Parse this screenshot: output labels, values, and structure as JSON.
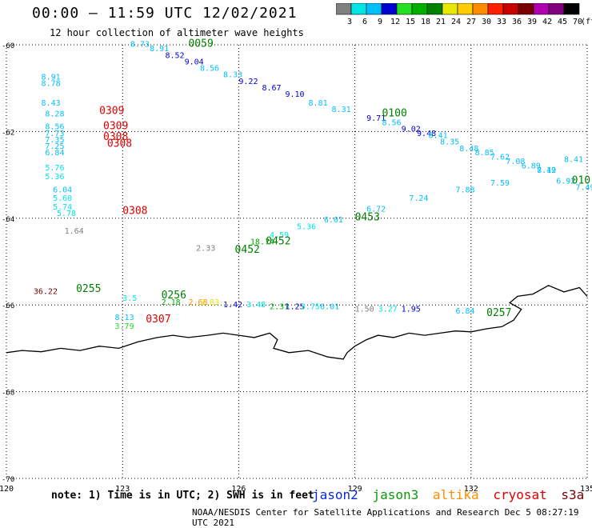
{
  "header": {
    "title": "00:00 – 11:59 UTC 12/02/2021",
    "subtitle": "12 hour collection of altimeter wave heights"
  },
  "footer": {
    "note": "note: 1) Time is in UTC; 2) SWH is in feet",
    "credit": "NOAA/NESDIS Center for Satellite Applications and Research   Dec  5 08:27:19 UTC 2021"
  },
  "satellites": [
    {
      "name": "jason2",
      "color": "#0a2ad8"
    },
    {
      "name": "jason3",
      "color": "#0a9a0a"
    },
    {
      "name": "altika",
      "color": "#ff8c00"
    },
    {
      "name": "cryosat",
      "color": "#e00000"
    },
    {
      "name": "s3a",
      "color": "#7a0000"
    }
  ],
  "color_scale": {
    "unit": "(ft)",
    "labels": [
      "3",
      "6",
      "9",
      "12",
      "15",
      "18",
      "21",
      "24",
      "27",
      "30",
      "33",
      "36",
      "39",
      "42",
      "45",
      "70"
    ],
    "colors": [
      "#808080",
      "#00e5e5",
      "#00bfff",
      "#0000d0",
      "#22e022",
      "#00b000",
      "#008000",
      "#e8e800",
      "#ffcc00",
      "#ff8c00",
      "#ff2000",
      "#c80000",
      "#780000",
      "#b000b0",
      "#800080",
      "#000000"
    ]
  },
  "map": {
    "lon_range": [
      120,
      135
    ],
    "lat_range": [
      -70,
      -60
    ],
    "x_ticks": [
      "120",
      "123",
      "126",
      "129",
      "132",
      "135"
    ],
    "y_ticks": [
      "-60",
      "-62",
      "-64",
      "-66",
      "-68",
      "-70"
    ],
    "x_tick_values": [
      120,
      123,
      126,
      129,
      132,
      135
    ],
    "y_tick_values": [
      -60,
      -62,
      -64,
      -66,
      -68,
      -70
    ]
  },
  "time_labels": [
    {
      "text": "0059",
      "lon": 124.7,
      "lat": -60.05,
      "color": "#008000"
    },
    {
      "text": "0309",
      "lon": 122.4,
      "lat": -61.6,
      "color": "#e00000"
    },
    {
      "text": "0309",
      "lon": 122.5,
      "lat": -61.95,
      "color": "#e00000"
    },
    {
      "text": "0308",
      "lon": 122.5,
      "lat": -62.2,
      "color": "#e00000"
    },
    {
      "text": "0308",
      "lon": 122.6,
      "lat": -62.35,
      "color": "#e00000"
    },
    {
      "text": "0100",
      "lon": 129.7,
      "lat": -61.65,
      "color": "#008000"
    },
    {
      "text": "0308",
      "lon": 123.0,
      "lat": -63.9,
      "color": "#e00000"
    },
    {
      "text": "0453",
      "lon": 129.0,
      "lat": -64.05,
      "color": "#008000"
    },
    {
      "text": "0452",
      "lon": 126.7,
      "lat": -64.6,
      "color": "#008000"
    },
    {
      "text": "0452",
      "lon": 125.9,
      "lat": -64.8,
      "color": "#008000"
    },
    {
      "text": "0255",
      "lon": 121.8,
      "lat": -65.7,
      "color": "#008000"
    },
    {
      "text": "0256",
      "lon": 124.0,
      "lat": -65.85,
      "color": "#008000"
    },
    {
      "text": "0307",
      "lon": 123.6,
      "lat": -66.4,
      "color": "#e00000"
    },
    {
      "text": "0257",
      "lon": 132.4,
      "lat": -66.25,
      "color": "#008000"
    },
    {
      "text": "010",
      "lon": 134.6,
      "lat": -63.2,
      "color": "#008000"
    }
  ],
  "wave_heights": [
    {
      "text": "8.73",
      "lon": 123.2,
      "lat": -60.05,
      "color": "#00bfff"
    },
    {
      "text": "8.91",
      "lon": 123.7,
      "lat": -60.15,
      "color": "#00bfff"
    },
    {
      "text": "8.52",
      "lon": 124.1,
      "lat": -60.3,
      "color": "#0000d0"
    },
    {
      "text": "9.04",
      "lon": 124.6,
      "lat": -60.45,
      "color": "#0000d0"
    },
    {
      "text": "8.56",
      "lon": 125.0,
      "lat": -60.6,
      "color": "#00bfff"
    },
    {
      "text": "8.33",
      "lon": 125.6,
      "lat": -60.75,
      "color": "#00bfff"
    },
    {
      "text": "9.22",
      "lon": 126.0,
      "lat": -60.9,
      "color": "#0000d0"
    },
    {
      "text": "8.67",
      "lon": 126.6,
      "lat": -61.05,
      "color": "#0000d0"
    },
    {
      "text": "9.10",
      "lon": 127.2,
      "lat": -61.2,
      "color": "#0000d0"
    },
    {
      "text": "8.81",
      "lon": 127.8,
      "lat": -61.4,
      "color": "#00bfff"
    },
    {
      "text": "8.31",
      "lon": 128.4,
      "lat": -61.55,
      "color": "#00bfff"
    },
    {
      "text": "9.71",
      "lon": 129.3,
      "lat": -61.75,
      "color": "#0000d0"
    },
    {
      "text": "8.56",
      "lon": 129.7,
      "lat": -61.85,
      "color": "#00bfff"
    },
    {
      "text": "9.02",
      "lon": 130.2,
      "lat": -62.0,
      "color": "#0000d0"
    },
    {
      "text": "9.48",
      "lon": 130.6,
      "lat": -62.1,
      "color": "#0000d0"
    },
    {
      "text": "8.41",
      "lon": 130.9,
      "lat": -62.15,
      "color": "#00bfff"
    },
    {
      "text": "8.35",
      "lon": 131.2,
      "lat": -62.3,
      "color": "#00bfff"
    },
    {
      "text": "8.48",
      "lon": 131.7,
      "lat": -62.45,
      "color": "#00bfff"
    },
    {
      "text": "8.85",
      "lon": 132.1,
      "lat": -62.55,
      "color": "#00bfff"
    },
    {
      "text": "7.62",
      "lon": 132.5,
      "lat": -62.65,
      "color": "#00bfff"
    },
    {
      "text": "7.08",
      "lon": 132.9,
      "lat": -62.75,
      "color": "#00bfff"
    },
    {
      "text": "6.89",
      "lon": 133.3,
      "lat": -62.85,
      "color": "#00bfff"
    },
    {
      "text": "7.49",
      "lon": 133.7,
      "lat": -62.95,
      "color": "#00bfff"
    },
    {
      "text": "6.92",
      "lon": 134.2,
      "lat": -63.2,
      "color": "#00bfff"
    },
    {
      "text": "7.49",
      "lon": 134.7,
      "lat": -63.35,
      "color": "#00bfff"
    },
    {
      "text": "8.91",
      "lon": 120.9,
      "lat": -60.8,
      "color": "#00bfff"
    },
    {
      "text": "8.78",
      "lon": 120.9,
      "lat": -60.95,
      "color": "#00bfff"
    },
    {
      "text": "8.43",
      "lon": 120.9,
      "lat": -61.4,
      "color": "#00bfff"
    },
    {
      "text": "8.28",
      "lon": 121.0,
      "lat": -61.65,
      "color": "#00bfff"
    },
    {
      "text": "8.56",
      "lon": 121.0,
      "lat": -61.95,
      "color": "#00bfff"
    },
    {
      "text": "7.73",
      "lon": 121.0,
      "lat": -62.1,
      "color": "#00bfff"
    },
    {
      "text": "7.35",
      "lon": 121.0,
      "lat": -62.25,
      "color": "#00bfff"
    },
    {
      "text": "7.25",
      "lon": 121.0,
      "lat": -62.4,
      "color": "#00bfff"
    },
    {
      "text": "6.84",
      "lon": 121.0,
      "lat": -62.55,
      "color": "#00bfff"
    },
    {
      "text": "5.76",
      "lon": 121.0,
      "lat": -62.9,
      "color": "#00e5e5"
    },
    {
      "text": "5.36",
      "lon": 121.0,
      "lat": -63.1,
      "color": "#00e5e5"
    },
    {
      "text": "6.04",
      "lon": 121.2,
      "lat": -63.4,
      "color": "#00bfff"
    },
    {
      "text": "5.60",
      "lon": 121.2,
      "lat": -63.6,
      "color": "#00e5e5"
    },
    {
      "text": "5.74",
      "lon": 121.2,
      "lat": -63.8,
      "color": "#00e5e5"
    },
    {
      "text": "5.78",
      "lon": 121.3,
      "lat": -63.95,
      "color": "#00e5e5"
    },
    {
      "text": "1.64",
      "lon": 121.5,
      "lat": -64.35,
      "color": "#808080"
    },
    {
      "text": "2.33",
      "lon": 124.9,
      "lat": -64.75,
      "color": "#808080"
    },
    {
      "text": "18.74",
      "lon": 126.3,
      "lat": -64.6,
      "color": "#00b000"
    },
    {
      "text": "4.59",
      "lon": 126.8,
      "lat": -64.45,
      "color": "#00e5e5"
    },
    {
      "text": "5.36",
      "lon": 127.5,
      "lat": -64.25,
      "color": "#00e5e5"
    },
    {
      "text": "6.01",
      "lon": 128.2,
      "lat": -64.1,
      "color": "#00bfff"
    },
    {
      "text": "6.72",
      "lon": 129.3,
      "lat": -63.85,
      "color": "#00bfff"
    },
    {
      "text": "7.24",
      "lon": 130.4,
      "lat": -63.6,
      "color": "#00bfff"
    },
    {
      "text": "7.88",
      "lon": 131.6,
      "lat": -63.4,
      "color": "#00bfff"
    },
    {
      "text": "7.59",
      "lon": 132.5,
      "lat": -63.25,
      "color": "#00bfff"
    },
    {
      "text": "8.12",
      "lon": 133.7,
      "lat": -62.95,
      "color": "#00bfff"
    },
    {
      "text": "8.41",
      "lon": 134.4,
      "lat": -62.7,
      "color": "#00bfff"
    },
    {
      "text": "36.22",
      "lon": 120.7,
      "lat": -65.75,
      "color": "#780000"
    },
    {
      "text": "3.5",
      "lon": 123.0,
      "lat": -65.9,
      "color": "#00e5e5"
    },
    {
      "text": "2.18",
      "lon": 124.0,
      "lat": -66.0,
      "color": "#00b000"
    },
    {
      "text": "2.68",
      "lon": 124.7,
      "lat": -66.0,
      "color": "#ff8c00"
    },
    {
      "text": "2.83",
      "lon": 125.0,
      "lat": -66.0,
      "color": "#e8e800"
    },
    {
      "text": "1.42",
      "lon": 125.6,
      "lat": -66.05,
      "color": "#0000d0"
    },
    {
      "text": "3.48",
      "lon": 126.2,
      "lat": -66.05,
      "color": "#00e5e5"
    },
    {
      "text": "2.31",
      "lon": 126.8,
      "lat": -66.1,
      "color": "#00b000"
    },
    {
      "text": "1.25",
      "lon": 127.2,
      "lat": -66.1,
      "color": "#0000d0"
    },
    {
      "text": "3.75",
      "lon": 127.6,
      "lat": -66.1,
      "color": "#00e5e5"
    },
    {
      "text": "6.01",
      "lon": 128.1,
      "lat": -66.1,
      "color": "#00bfff"
    },
    {
      "text": "1.50",
      "lon": 129.0,
      "lat": -66.15,
      "color": "#808080"
    },
    {
      "text": "3.27",
      "lon": 129.6,
      "lat": -66.15,
      "color": "#00e5e5"
    },
    {
      "text": "1.95",
      "lon": 130.2,
      "lat": -66.15,
      "color": "#0000d0"
    },
    {
      "text": "6.84",
      "lon": 131.6,
      "lat": -66.2,
      "color": "#00bfff"
    },
    {
      "text": "8.13",
      "lon": 122.8,
      "lat": -66.35,
      "color": "#00bfff"
    },
    {
      "text": "3.79",
      "lon": 122.8,
      "lat": -66.55,
      "color": "#22e022"
    }
  ]
}
